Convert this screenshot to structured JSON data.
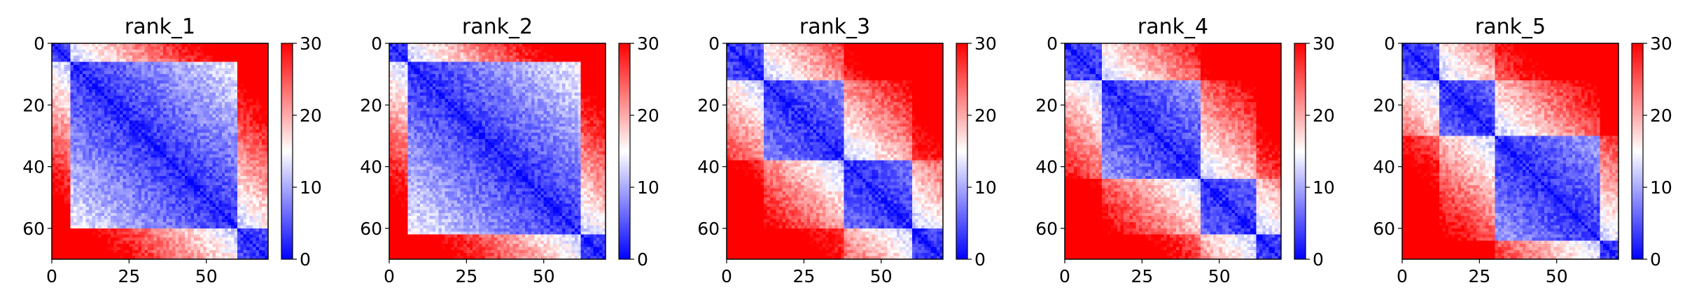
{
  "figure": {
    "panels": [
      {
        "title": "rank_1",
        "pattern": "rank1"
      },
      {
        "title": "rank_2",
        "pattern": "rank2"
      },
      {
        "title": "rank_3",
        "pattern": "rank3"
      },
      {
        "title": "rank_4",
        "pattern": "rank4"
      },
      {
        "title": "rank_5",
        "pattern": "rank5"
      }
    ]
  },
  "chart_data": {
    "type": "heatmap",
    "description_free": true,
    "matrix_size": 70,
    "xlim": [
      0,
      70
    ],
    "ylim": [
      0,
      70
    ],
    "x_ticks": [
      0,
      25,
      50
    ],
    "y_ticks": [
      0,
      20,
      40,
      60
    ],
    "colorbar": {
      "range": [
        0,
        30
      ],
      "ticks": [
        0,
        10,
        20,
        30
      ],
      "colormap": "bwr",
      "colors": {
        "low": "#0000ff",
        "mid": "#ffffff",
        "high": "#ff0000"
      }
    },
    "panels": [
      {
        "title": "rank_1",
        "domains": [
          [
            0,
            6
          ],
          [
            6,
            60
          ],
          [
            60,
            70
          ]
        ]
      },
      {
        "title": "rank_2",
        "domains": [
          [
            0,
            6
          ],
          [
            6,
            62
          ],
          [
            62,
            70
          ]
        ]
      },
      {
        "title": "rank_3",
        "domains": [
          [
            0,
            12
          ],
          [
            12,
            38
          ],
          [
            38,
            60
          ],
          [
            60,
            70
          ]
        ]
      },
      {
        "title": "rank_4",
        "domains": [
          [
            0,
            12
          ],
          [
            12,
            44
          ],
          [
            44,
            62
          ],
          [
            62,
            70
          ]
        ]
      },
      {
        "title": "rank_5",
        "domains": [
          [
            0,
            12
          ],
          [
            12,
            30
          ],
          [
            30,
            64
          ],
          [
            64,
            70
          ]
        ]
      }
    ]
  }
}
